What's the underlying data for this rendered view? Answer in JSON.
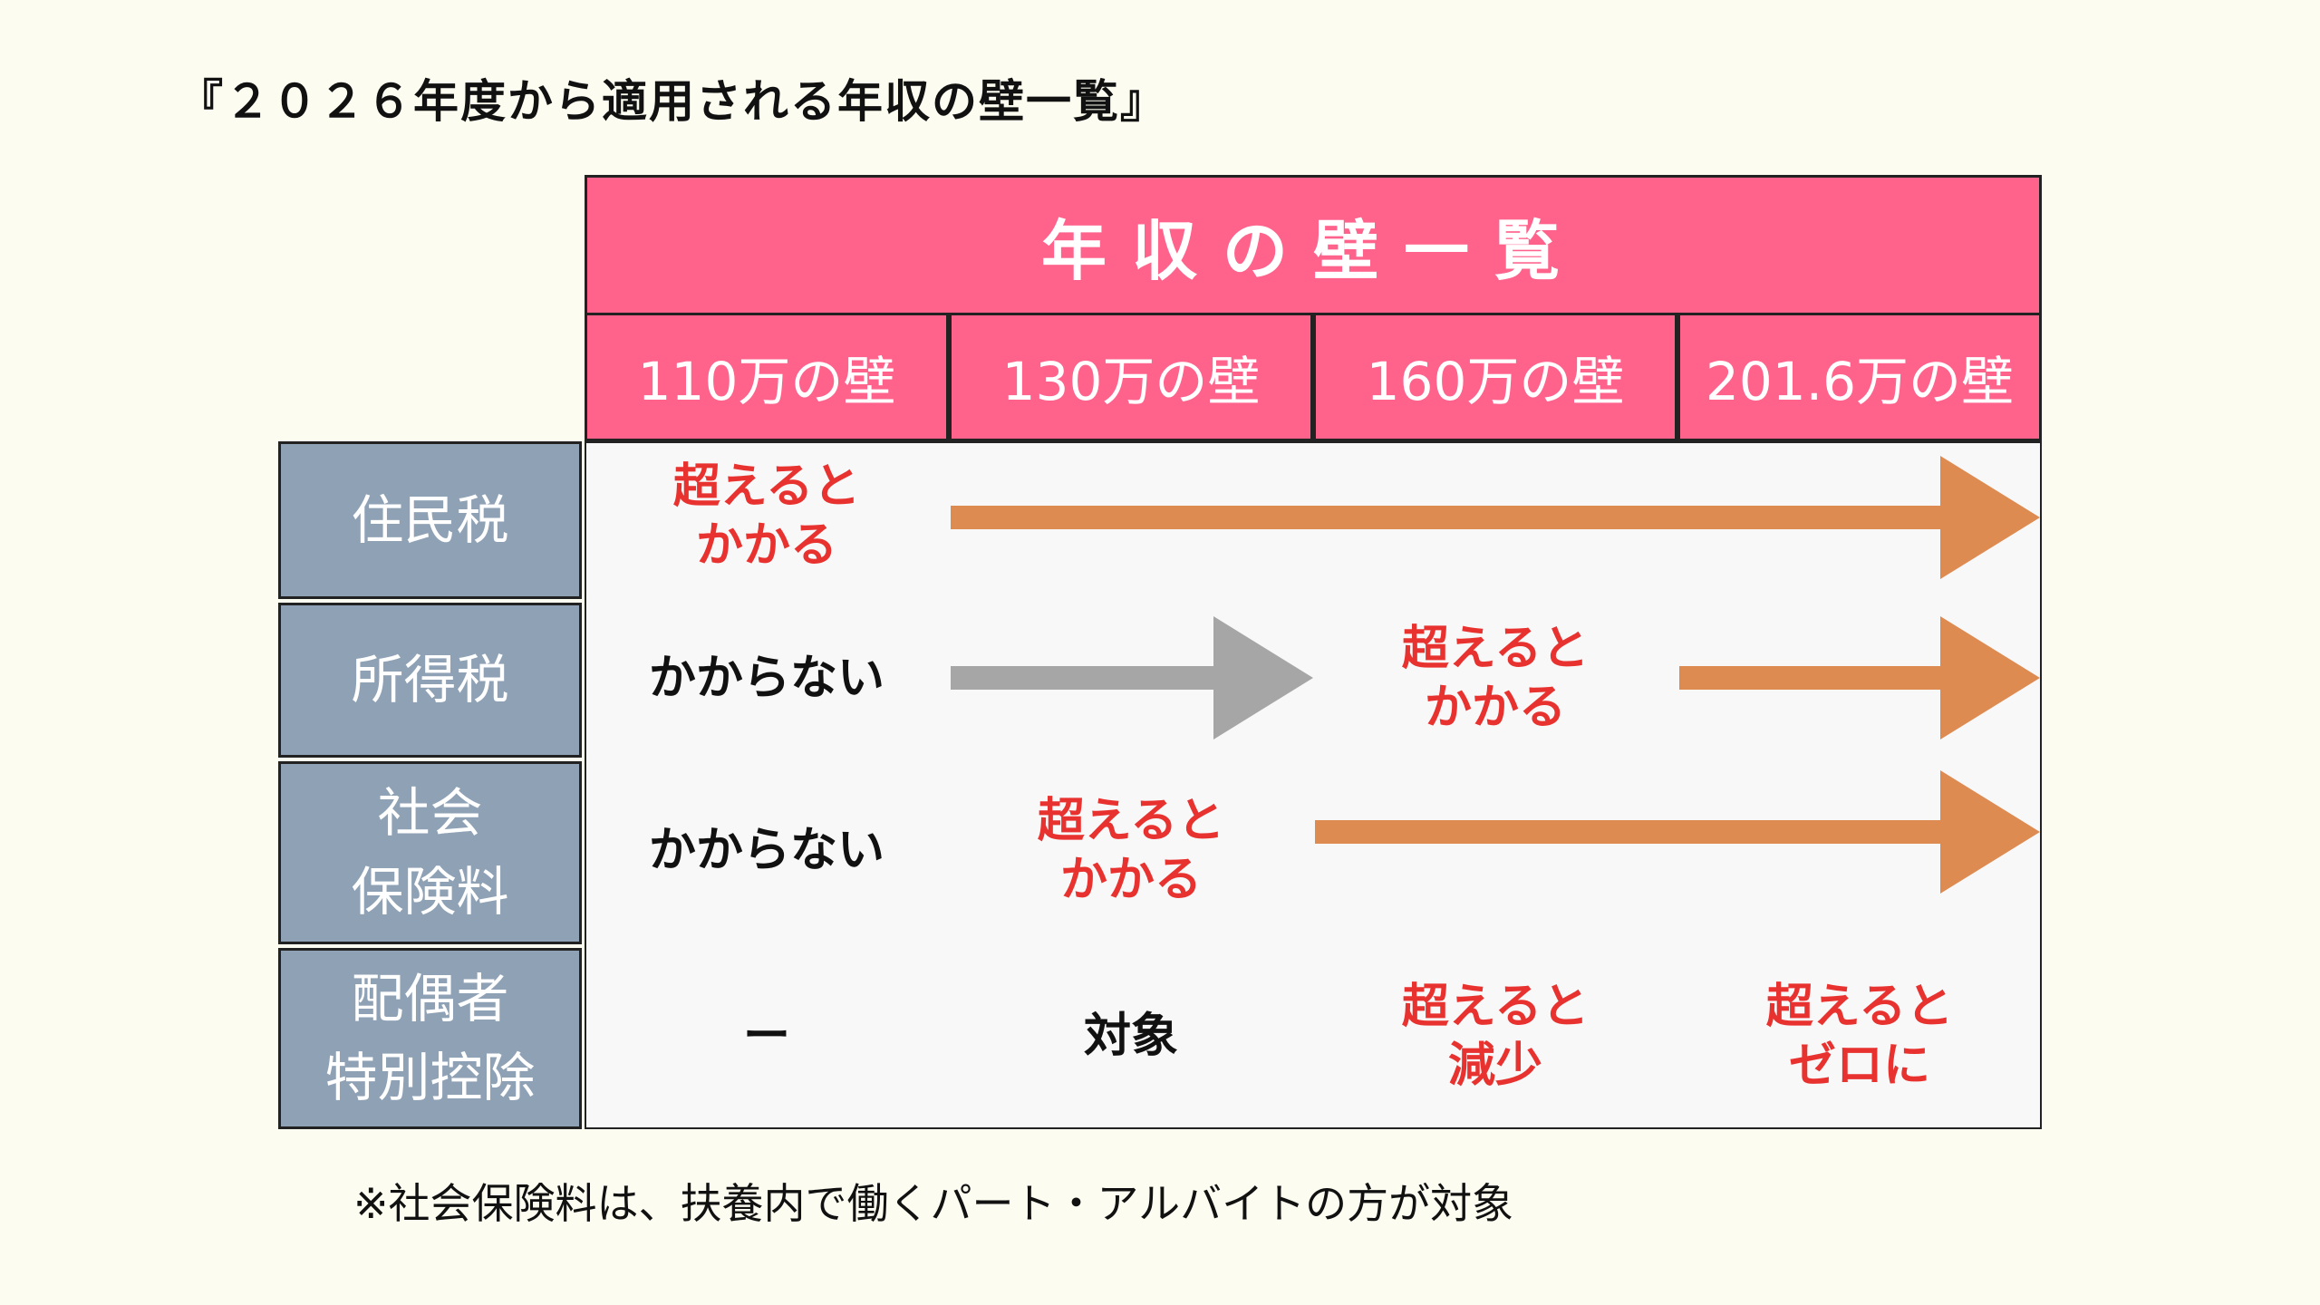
{
  "title": "『２０２６年度から適用される年収の壁一覧』",
  "table": {
    "header": "年収の壁一覧",
    "columns": [
      "110万の壁",
      "130万の壁",
      "160万の壁",
      "201.6万の壁"
    ],
    "rows": [
      {
        "label": "住民税",
        "cells": [
          {
            "col": 0,
            "text": "超えると\nかかる",
            "color": "red"
          }
        ],
        "arrows": [
          {
            "from_col": 1,
            "to_col": 4,
            "color": "#de8b52"
          }
        ]
      },
      {
        "label": "所得税",
        "cells": [
          {
            "col": 0,
            "text": "かからない",
            "color": "black"
          },
          {
            "col": 2,
            "text": "超えると\nかかる",
            "color": "red"
          }
        ],
        "arrows": [
          {
            "from_col": 1,
            "to_col": 2,
            "color": "#a6a6a6"
          },
          {
            "from_col": 3,
            "to_col": 4,
            "color": "#de8b52"
          }
        ]
      },
      {
        "label": "社会\n保険料",
        "cells": [
          {
            "col": 0,
            "text": "かからない",
            "color": "black"
          },
          {
            "col": 1,
            "text": "超えると\nかかる",
            "color": "red"
          }
        ],
        "arrows": [
          {
            "from_col": 2,
            "to_col": 4,
            "color": "#de8b52"
          }
        ]
      },
      {
        "label": "配偶者\n特別控除",
        "cells": [
          {
            "col": 0,
            "text": "ー",
            "color": "black"
          },
          {
            "col": 1,
            "text": "対象",
            "color": "black"
          },
          {
            "col": 2,
            "text": "超えると\n減少",
            "color": "red"
          },
          {
            "col": 3,
            "text": "超えると\nゼロに",
            "color": "red"
          }
        ],
        "arrows": []
      }
    ]
  },
  "footnote": "※社会保険料は、扶養内で働くパート・アルバイトの方が対象",
  "colors": {
    "header": "#ff638c",
    "label": "#8fa1b5",
    "red_text": "#e8322f",
    "orange_arrow": "#de8b52",
    "gray_arrow": "#a6a6a6",
    "background": "#fcfcf0"
  }
}
